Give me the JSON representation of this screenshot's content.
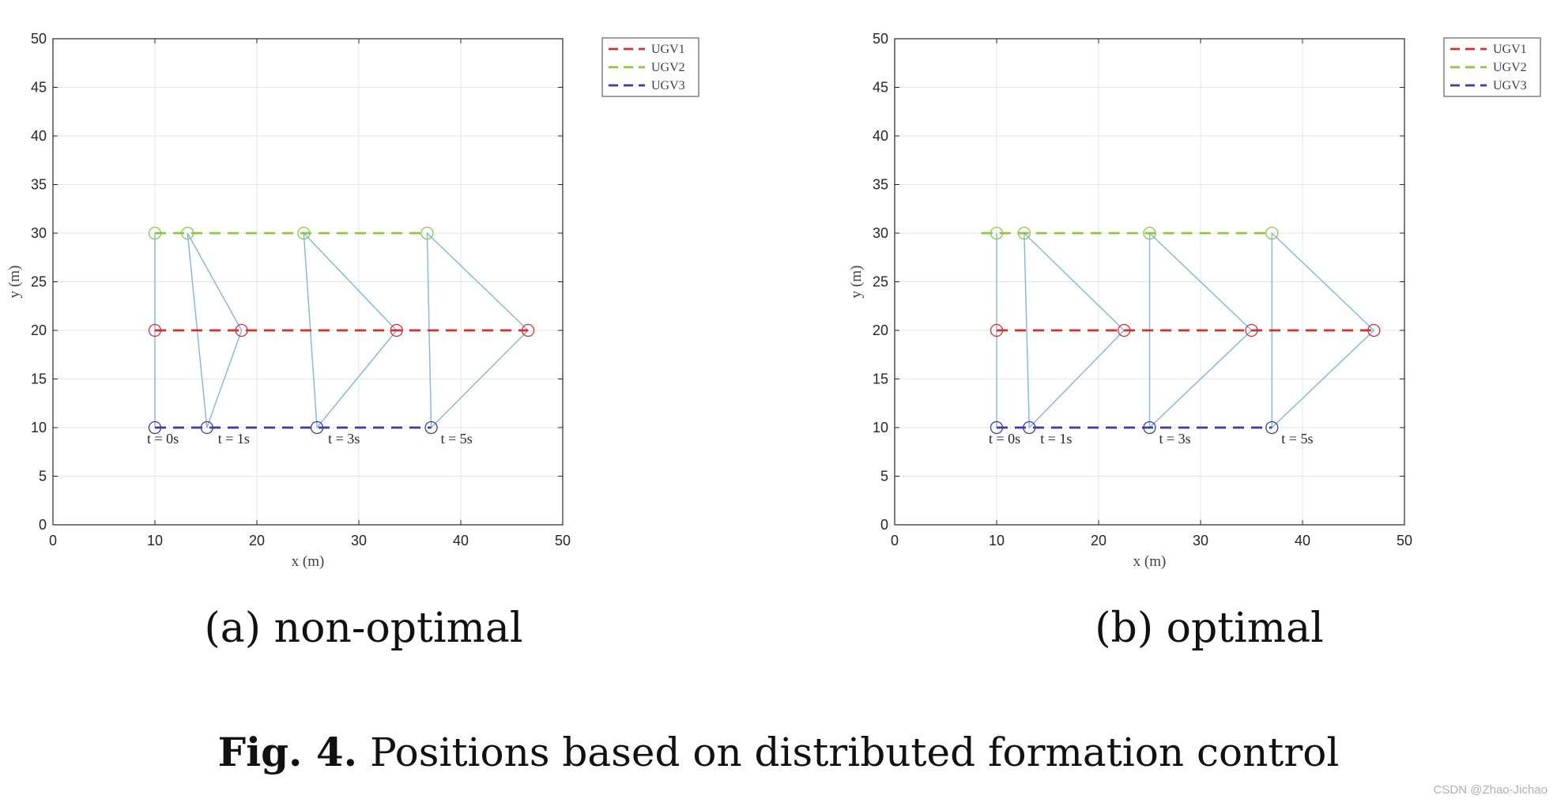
{
  "figure": {
    "caption_label": "Fig. 4.",
    "caption_text": "Positions based on distributed formation control",
    "watermark": "CSDN @Zhao-Jichao"
  },
  "colors": {
    "UGV1": "#d62d2d",
    "UGV2": "#8cc63f",
    "UGV3": "#3a3ab0",
    "formation": "#7eb6e0",
    "grid": "#e6e6e6"
  },
  "chart_data": [
    {
      "type": "line",
      "subcaption": "(a) non-optimal",
      "xlabel": "x (m)",
      "ylabel": "y (m)",
      "xlim": [
        0,
        50
      ],
      "ylim": [
        0,
        50
      ],
      "xticks": [
        0,
        10,
        20,
        30,
        40,
        50
      ],
      "yticks": [
        0,
        5,
        10,
        15,
        20,
        25,
        30,
        35,
        40,
        45,
        50
      ],
      "grid": true,
      "legend": "outside-top-right",
      "series": [
        {
          "name": "UGV1",
          "style": "dashed",
          "x": [
            10,
            18.5,
            33.7,
            46.6
          ],
          "y": [
            20,
            20,
            20,
            20
          ]
        },
        {
          "name": "UGV2",
          "style": "dashed",
          "x": [
            10,
            13.2,
            24.6,
            36.7
          ],
          "y": [
            30,
            30,
            30,
            30
          ]
        },
        {
          "name": "UGV3",
          "style": "dashed",
          "x": [
            10,
            15.1,
            25.9,
            37.1
          ],
          "y": [
            10,
            10,
            10,
            10
          ]
        }
      ],
      "snapshots": [
        {
          "label": "t = 0s",
          "UGV1": [
            10,
            20
          ],
          "UGV2": [
            10,
            30
          ],
          "UGV3": [
            10,
            10
          ]
        },
        {
          "label": "t = 1s",
          "UGV1": [
            18.5,
            20
          ],
          "UGV2": [
            13.2,
            30
          ],
          "UGV3": [
            15.1,
            10
          ]
        },
        {
          "label": "t = 3s",
          "UGV1": [
            33.7,
            20
          ],
          "UGV2": [
            24.6,
            30
          ],
          "UGV3": [
            25.9,
            10
          ]
        },
        {
          "label": "t = 5s",
          "UGV1": [
            46.6,
            20
          ],
          "UGV2": [
            36.7,
            30
          ],
          "UGV3": [
            37.1,
            10
          ]
        }
      ]
    },
    {
      "type": "line",
      "subcaption": "(b) optimal",
      "xlabel": "x (m)",
      "ylabel": "y (m)",
      "xlim": [
        0,
        50
      ],
      "ylim": [
        0,
        50
      ],
      "xticks": [
        0,
        10,
        20,
        30,
        40,
        50
      ],
      "yticks": [
        0,
        5,
        10,
        15,
        20,
        25,
        30,
        35,
        40,
        45,
        50
      ],
      "grid": true,
      "legend": "outside-top-right",
      "series": [
        {
          "name": "UGV1",
          "style": "dashed",
          "x": [
            10,
            22.5,
            35,
            47
          ],
          "y": [
            20,
            20,
            20,
            20
          ]
        },
        {
          "name": "UGV2",
          "style": "dashed",
          "x": [
            8.5,
            10,
            12.7,
            25,
            37
          ],
          "y": [
            30,
            30,
            30,
            30,
            30
          ]
        },
        {
          "name": "UGV3",
          "style": "dashed",
          "x": [
            10,
            13.2,
            25,
            37
          ],
          "y": [
            10,
            10,
            10,
            10
          ]
        }
      ],
      "snapshots": [
        {
          "label": "t = 0s",
          "UGV1": [
            10,
            20
          ],
          "UGV2": [
            10,
            30
          ],
          "UGV3": [
            10,
            10
          ]
        },
        {
          "label": "t = 1s",
          "UGV1": [
            22.5,
            20
          ],
          "UGV2": [
            12.7,
            30
          ],
          "UGV3": [
            13.2,
            10
          ]
        },
        {
          "label": "t = 3s",
          "UGV1": [
            35,
            20
          ],
          "UGV2": [
            25,
            30
          ],
          "UGV3": [
            25,
            10
          ]
        },
        {
          "label": "t = 5s",
          "UGV1": [
            47,
            20
          ],
          "UGV2": [
            37,
            30
          ],
          "UGV3": [
            37,
            10
          ]
        }
      ]
    }
  ]
}
